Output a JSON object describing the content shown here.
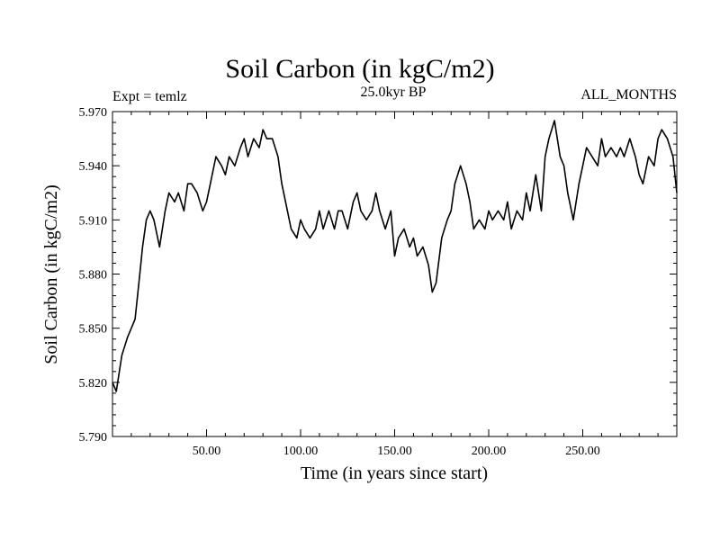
{
  "chart_data": {
    "type": "line",
    "title": "Soil Carbon (in kgC/m2)",
    "subtitle": "25.0kyr BP",
    "left_label": "Expt = temlz",
    "right_label": "ALL_MONTHS",
    "xlabel": "Time (in years since start)",
    "ylabel": "Soil Carbon (in kgC/m2)",
    "xlim": [
      0,
      300
    ],
    "ylim": [
      5.79,
      5.97
    ],
    "x_ticks": [
      50,
      100,
      150,
      200,
      250
    ],
    "x_tick_labels": [
      "50.00",
      "100.00",
      "150.00",
      "200.00",
      "250.00"
    ],
    "y_ticks": [
      5.79,
      5.82,
      5.85,
      5.88,
      5.91,
      5.94,
      5.97
    ],
    "y_tick_labels": [
      "5.790",
      "5.820",
      "5.850",
      "5.880",
      "5.910",
      "5.940",
      "5.970"
    ],
    "line_color": "#000000",
    "series": [
      {
        "name": "Soil Carbon",
        "x": [
          0,
          2,
          5,
          8,
          10,
          12,
          14,
          16,
          18,
          20,
          22,
          25,
          28,
          30,
          33,
          35,
          38,
          40,
          42,
          45,
          48,
          50,
          52,
          55,
          58,
          60,
          62,
          65,
          68,
          70,
          72,
          75,
          78,
          80,
          82,
          85,
          88,
          90,
          92,
          95,
          98,
          100,
          102,
          105,
          108,
          110,
          112,
          115,
          118,
          120,
          122,
          125,
          128,
          130,
          132,
          135,
          138,
          140,
          142,
          145,
          148,
          150,
          152,
          155,
          158,
          160,
          162,
          165,
          168,
          170,
          172,
          175,
          178,
          180,
          182,
          185,
          188,
          190,
          192,
          195,
          198,
          200,
          202,
          205,
          208,
          210,
          212,
          215,
          218,
          220,
          222,
          225,
          228,
          230,
          232,
          235,
          238,
          240,
          242,
          245,
          248,
          250,
          252,
          255,
          258,
          260,
          262,
          265,
          268,
          270,
          272,
          275,
          278,
          280,
          282,
          285,
          288,
          290,
          292,
          295,
          298,
          300
        ],
        "values": [
          5.82,
          5.815,
          5.835,
          5.845,
          5.85,
          5.855,
          5.875,
          5.895,
          5.91,
          5.915,
          5.91,
          5.895,
          5.915,
          5.925,
          5.92,
          5.925,
          5.915,
          5.93,
          5.93,
          5.925,
          5.915,
          5.92,
          5.93,
          5.945,
          5.94,
          5.935,
          5.945,
          5.94,
          5.95,
          5.955,
          5.945,
          5.955,
          5.95,
          5.96,
          5.955,
          5.955,
          5.945,
          5.93,
          5.92,
          5.905,
          5.9,
          5.91,
          5.905,
          5.9,
          5.905,
          5.915,
          5.905,
          5.915,
          5.905,
          5.915,
          5.915,
          5.905,
          5.92,
          5.925,
          5.915,
          5.91,
          5.915,
          5.925,
          5.915,
          5.905,
          5.915,
          5.89,
          5.9,
          5.905,
          5.895,
          5.9,
          5.89,
          5.895,
          5.885,
          5.87,
          5.875,
          5.9,
          5.91,
          5.915,
          5.93,
          5.94,
          5.93,
          5.92,
          5.905,
          5.91,
          5.905,
          5.915,
          5.91,
          5.915,
          5.91,
          5.92,
          5.905,
          5.915,
          5.91,
          5.925,
          5.915,
          5.935,
          5.915,
          5.945,
          5.955,
          5.965,
          5.945,
          5.94,
          5.925,
          5.91,
          5.93,
          5.94,
          5.95,
          5.945,
          5.94,
          5.955,
          5.945,
          5.95,
          5.945,
          5.95,
          5.945,
          5.955,
          5.945,
          5.935,
          5.93,
          5.945,
          5.94,
          5.955,
          5.96,
          5.955,
          5.945,
          5.925
        ]
      }
    ]
  }
}
